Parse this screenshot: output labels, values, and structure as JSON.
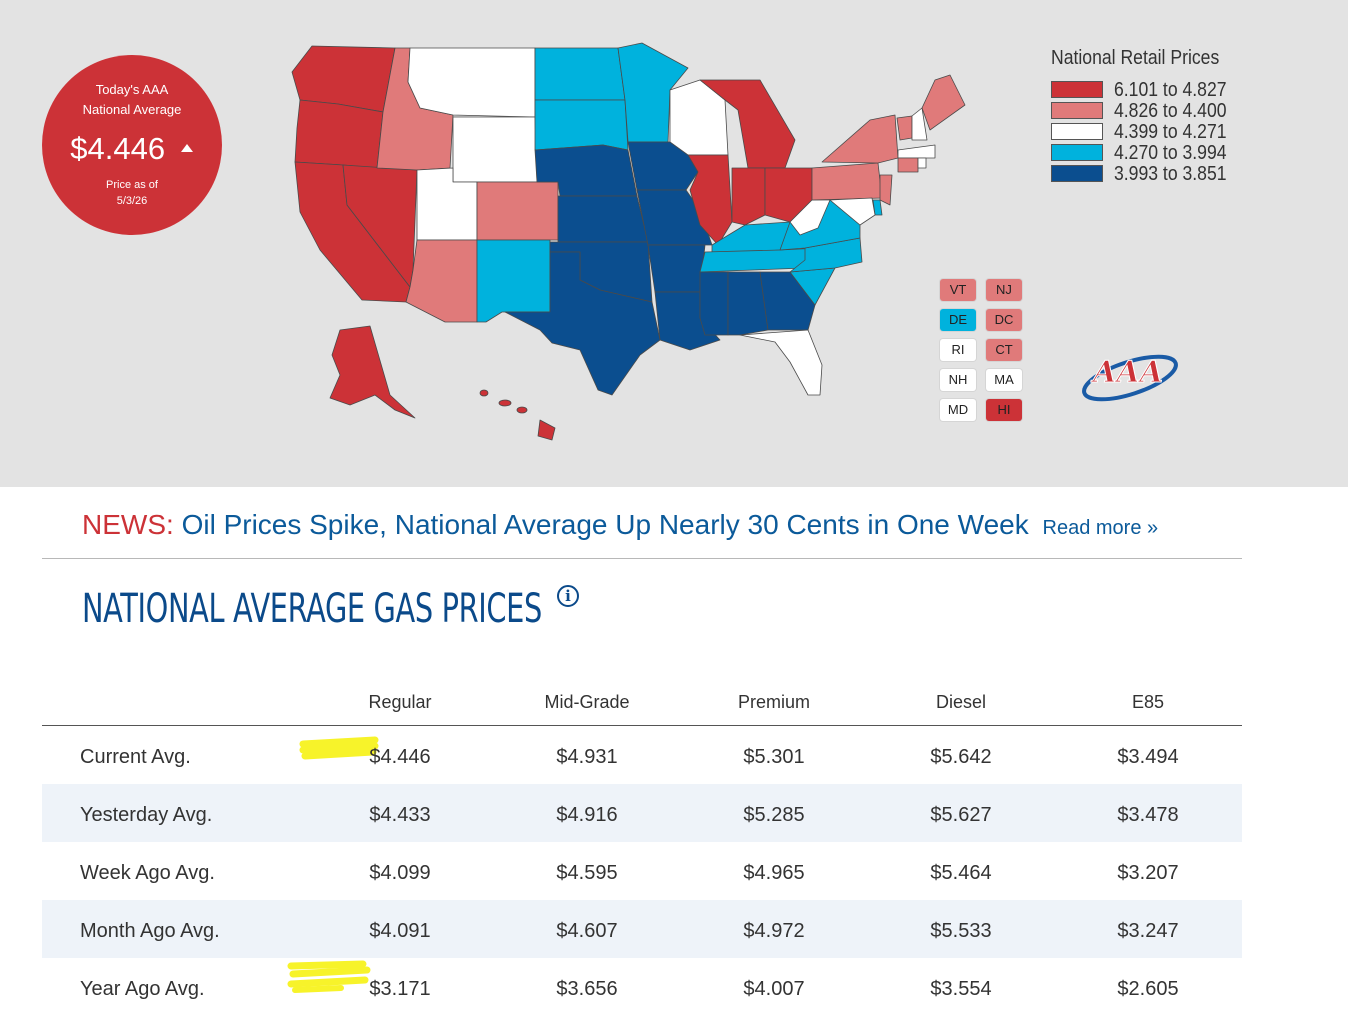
{
  "badge": {
    "line1": "Today's AAA",
    "line2": "National Average",
    "price": "$4.446",
    "trend_icon": "up-triangle-icon",
    "asof_line1": "Price as of",
    "asof_line2": "5/3/26"
  },
  "legend": {
    "title": "National Retail Prices",
    "items": [
      {
        "label": "6.101 to 4.827",
        "color": "#cc3237"
      },
      {
        "label": "4.826 to 4.400",
        "color": "#e07a7a"
      },
      {
        "label": "4.399 to 4.271",
        "color": "#ffffff"
      },
      {
        "label": "4.270 to 3.994",
        "color": "#00b2dd"
      },
      {
        "label": "3.993 to 3.851",
        "color": "#0b4e8f"
      }
    ]
  },
  "small_states": [
    {
      "code": "VT",
      "tier": 1
    },
    {
      "code": "NJ",
      "tier": 1
    },
    {
      "code": "DE",
      "tier": 3
    },
    {
      "code": "DC",
      "tier": 1
    },
    {
      "code": "RI",
      "tier": 2
    },
    {
      "code": "CT",
      "tier": 1
    },
    {
      "code": "NH",
      "tier": 2
    },
    {
      "code": "MA",
      "tier": 2
    },
    {
      "code": "MD",
      "tier": 2
    },
    {
      "code": "HI",
      "tier": 0
    }
  ],
  "logo": {
    "text": "AAA"
  },
  "news": {
    "label": "NEWS:",
    "headline": "Oil Prices Spike, National Average Up Nearly 30 Cents in One Week",
    "read_more": "Read more »"
  },
  "section": {
    "title": "NATIONAL AVERAGE GAS PRICES",
    "info_icon": "i"
  },
  "table": {
    "columns": [
      "Regular",
      "Mid-Grade",
      "Premium",
      "Diesel",
      "E85"
    ],
    "rows": [
      {
        "label": "Current Avg.",
        "values": [
          "$4.446",
          "$4.931",
          "$5.301",
          "$5.642",
          "$3.494"
        ]
      },
      {
        "label": "Yesterday Avg.",
        "values": [
          "$4.433",
          "$4.916",
          "$5.285",
          "$5.627",
          "$3.478"
        ]
      },
      {
        "label": "Week Ago Avg.",
        "values": [
          "$4.099",
          "$4.595",
          "$4.965",
          "$5.464",
          "$3.207"
        ]
      },
      {
        "label": "Month Ago Avg.",
        "values": [
          "$4.091",
          "$4.607",
          "$4.972",
          "$5.533",
          "$3.247"
        ]
      },
      {
        "label": "Year Ago Avg.",
        "values": [
          "$3.171",
          "$3.656",
          "$4.007",
          "$3.554",
          "$2.605"
        ]
      }
    ],
    "highlighted_cells": [
      "rows.0.values.0",
      "rows.4.values.0"
    ],
    "highlight_color": "#f7f32a"
  }
}
